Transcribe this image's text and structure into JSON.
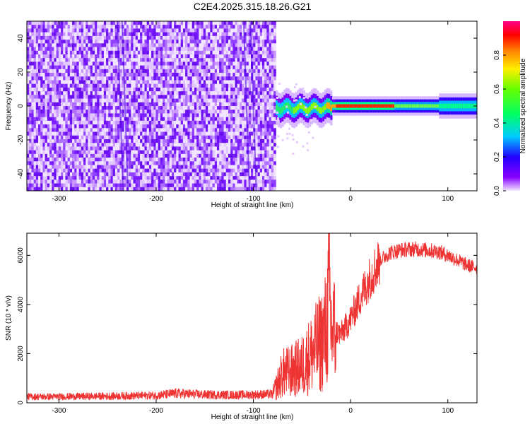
{
  "title": "C2E4.2025.315.18.26.G21",
  "chart_data": [
    {
      "type": "heatmap",
      "xlabel": "Height of straight line (km)",
      "ylabel": "Frequency (Hz)",
      "xlim": [
        -333,
        130
      ],
      "ylim": [
        -50,
        50
      ],
      "xticks": [
        -300,
        -200,
        -100,
        0,
        100
      ],
      "yticks": [
        -40,
        -20,
        0,
        20,
        40
      ],
      "noise_region_km": [
        -333,
        -77
      ],
      "signal_band_hz": [
        -3,
        3
      ],
      "signal_peak_km": [
        -15,
        45
      ],
      "colorbar": {
        "label": "Normalized spectral amplitude",
        "range": [
          0,
          1
        ],
        "ticks": [
          0.0,
          0.2,
          0.4,
          0.6,
          0.8
        ]
      },
      "grid": false
    },
    {
      "type": "line",
      "xlabel": "Height of straight line (km)",
      "ylabel": "SNR (10 * v/v)",
      "xlim": [
        -333,
        130
      ],
      "ylim": [
        0,
        6900
      ],
      "xticks": [
        -300,
        -200,
        -100,
        0,
        100
      ],
      "yticks": [
        0,
        2000,
        4000,
        6000
      ],
      "line_color": "#ee3333",
      "grid": false,
      "series": [
        {
          "x": [
            -333,
            -300,
            -250,
            -200,
            -180,
            -150,
            -120,
            -100,
            -80,
            -70,
            -60,
            -50,
            -40,
            -30,
            -25,
            -22,
            -20,
            -10,
            0,
            10,
            20,
            30,
            40,
            50,
            60,
            70,
            80,
            90,
            100,
            110,
            120,
            130
          ],
          "y": [
            250,
            250,
            270,
            300,
            380,
            330,
            320,
            330,
            350,
            1200,
            1300,
            1500,
            2000,
            2500,
            3000,
            4400,
            3000,
            2800,
            3400,
            4300,
            5100,
            5800,
            6100,
            6200,
            6250,
            6250,
            6200,
            6150,
            6000,
            5800,
            5600,
            5500
          ]
        }
      ]
    }
  ]
}
